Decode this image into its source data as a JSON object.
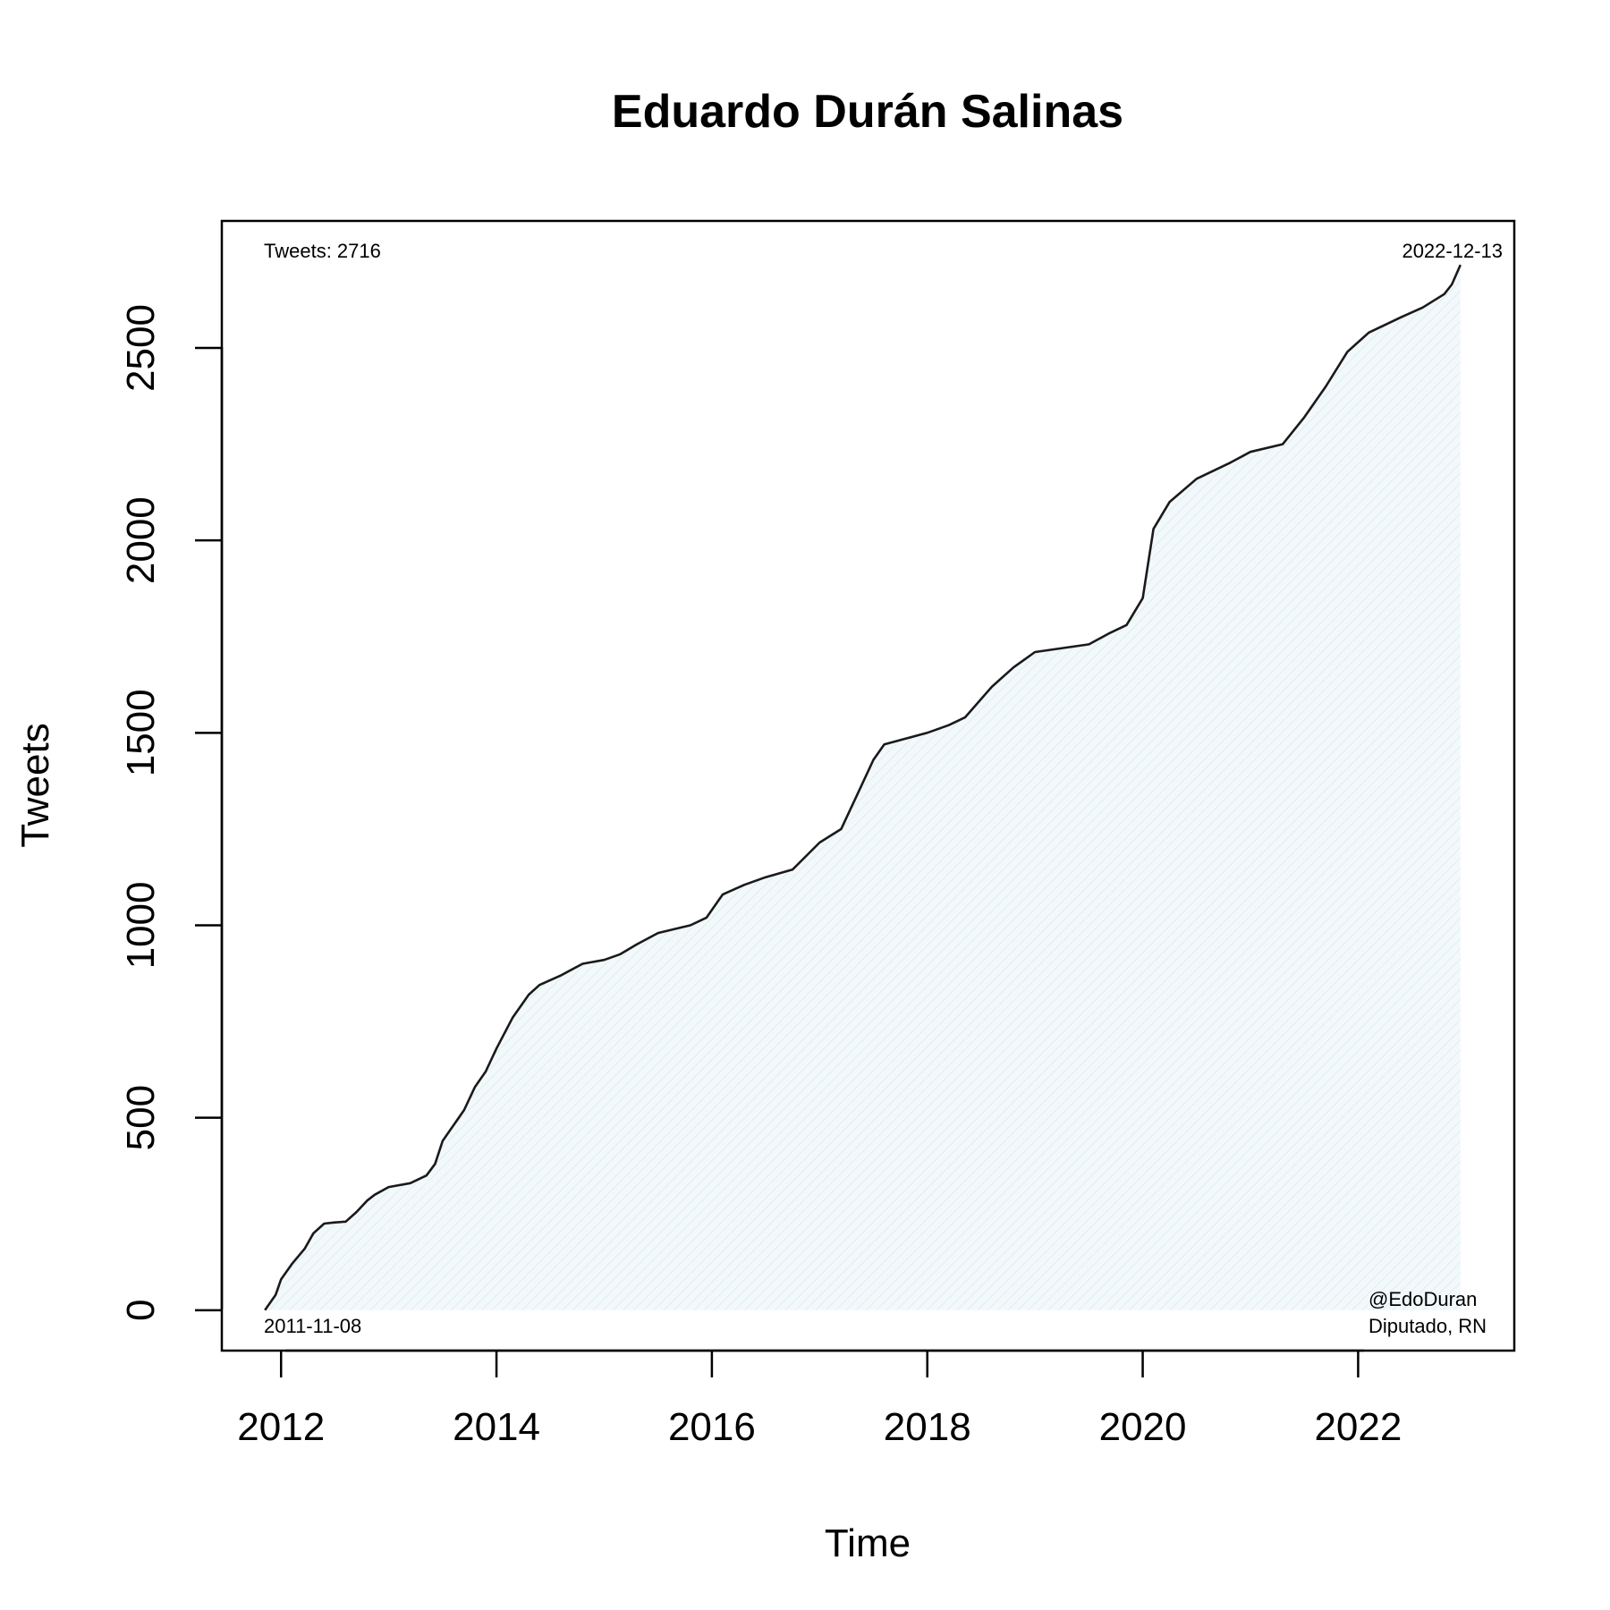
{
  "chart_data": {
    "type": "area",
    "title": "Eduardo Durán Salinas",
    "xlabel": "Time",
    "ylabel": "Tweets",
    "xlim": [
      2011.45,
      2023.45
    ],
    "ylim": [
      -105,
      2830
    ],
    "x_ticks": [
      2012,
      2014,
      2016,
      2018,
      2020,
      2022
    ],
    "y_ticks": [
      0,
      500,
      1000,
      1500,
      2000,
      2500
    ],
    "annotations": {
      "tweets": "Tweets: 2716",
      "end_date": "2022-12-13",
      "start_date": "2011-11-08",
      "handle": "@EdoDuran",
      "role": "Diputado, RN"
    },
    "colors": {
      "line": "#1a1a1a",
      "fill": "#eaf5f8"
    },
    "grid": false,
    "series": [
      {
        "x": [
          2011.85,
          2011.95,
          2012.0,
          2012.1,
          2012.22,
          2012.3,
          2012.4,
          2012.5,
          2012.6,
          2012.7,
          2012.8,
          2012.87,
          2013.0,
          2013.2,
          2013.35,
          2013.43,
          2013.5,
          2013.7,
          2013.8,
          2013.9,
          2014.0,
          2014.15,
          2014.3,
          2014.4,
          2014.6,
          2014.8,
          2015.0,
          2015.15,
          2015.3,
          2015.5,
          2015.8,
          2015.95,
          2016.1,
          2016.3,
          2016.5,
          2016.75,
          2017.0,
          2017.2,
          2017.35,
          2017.5,
          2017.6,
          2017.8,
          2018.0,
          2018.2,
          2018.35,
          2018.6,
          2018.8,
          2019.0,
          2019.5,
          2019.7,
          2019.85,
          2020.0,
          2020.1,
          2020.25,
          2020.5,
          2020.8,
          2021.0,
          2021.3,
          2021.5,
          2021.7,
          2021.9,
          2022.1,
          2022.4,
          2022.6,
          2022.8,
          2022.87,
          2022.95
        ],
        "y": [
          0,
          40,
          80,
          120,
          160,
          200,
          225,
          228,
          230,
          255,
          285,
          300,
          320,
          330,
          350,
          380,
          440,
          520,
          580,
          620,
          680,
          760,
          820,
          845,
          870,
          900,
          910,
          925,
          950,
          980,
          1000,
          1020,
          1080,
          1105,
          1125,
          1145,
          1215,
          1250,
          1340,
          1430,
          1470,
          1485,
          1500,
          1520,
          1540,
          1620,
          1670,
          1710,
          1730,
          1760,
          1780,
          1850,
          2030,
          2100,
          2160,
          2200,
          2230,
          2250,
          2320,
          2400,
          2490,
          2540,
          2580,
          2605,
          2640,
          2665,
          2716
        ]
      }
    ]
  }
}
